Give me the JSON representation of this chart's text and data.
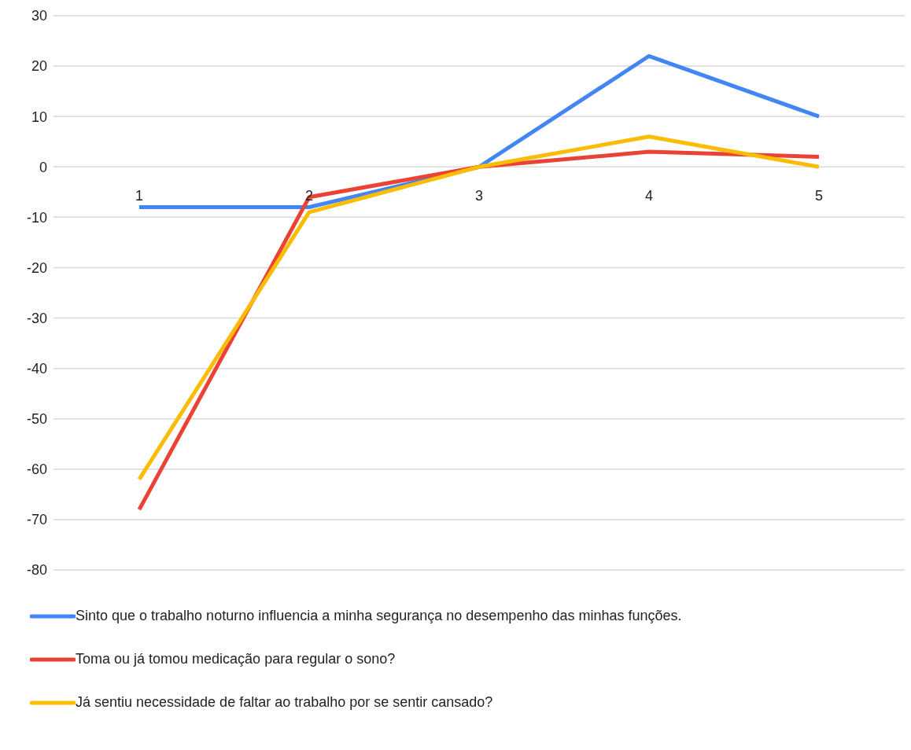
{
  "chart_data": {
    "type": "line",
    "categories": [
      "1",
      "2",
      "3",
      "4",
      "5"
    ],
    "series": [
      {
        "name": "Sinto que o trabalho noturno influencia a minha segurança no desempenho das minhas funções.",
        "color": "#4285f4",
        "values": [
          -8,
          -8,
          0,
          22,
          10
        ]
      },
      {
        "name": "Toma ou já tomou medicação para regular o sono?",
        "color": "#ea4335",
        "values": [
          -68,
          -6,
          0,
          3,
          2
        ]
      },
      {
        "name": "Já sentiu necessidade de faltar ao trabalho por se sentir cansado?",
        "color": "#fbbc04",
        "values": [
          -62,
          -9,
          0,
          6,
          0
        ]
      }
    ],
    "ylim": [
      -80,
      30
    ],
    "yticks": [
      -80,
      -70,
      -60,
      -50,
      -40,
      -30,
      -20,
      -10,
      0,
      10,
      20,
      30
    ],
    "grid": "y",
    "legend": "bottom left",
    "marker": "none",
    "line_style": "solid"
  }
}
